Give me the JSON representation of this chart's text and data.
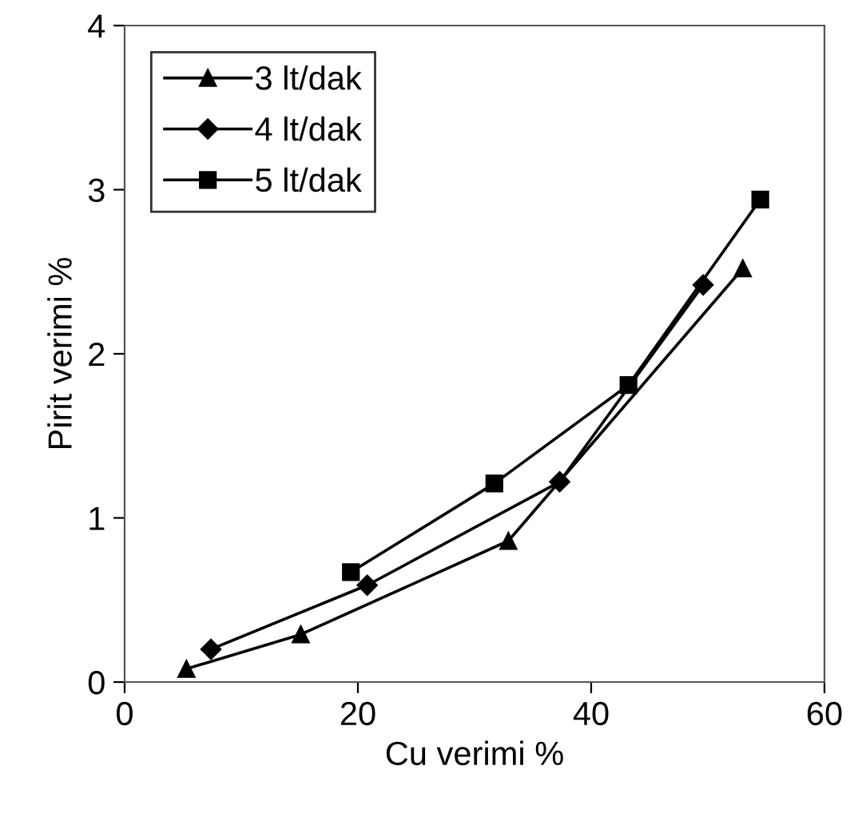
{
  "chart_data": {
    "type": "line",
    "xlabel": "Cu verimi %",
    "ylabel": "Pirit verimi %",
    "xlim": [
      0,
      60
    ],
    "xticks": [
      0,
      20,
      40,
      60
    ],
    "ylim": [
      0,
      4
    ],
    "yticks": [
      0,
      1,
      2,
      3,
      4
    ],
    "grid": false,
    "legend": "top left",
    "line_style": "solid",
    "series": [
      {
        "name": "3 lt/dak",
        "color": "#000000",
        "marker": "triangle",
        "x": [
          5.3,
          15.1,
          32.9,
          53.0
        ],
        "values": [
          0.08,
          0.29,
          0.86,
          2.52
        ]
      },
      {
        "name": "4 lt/dak",
        "color": "#000000",
        "marker": "diamond",
        "x": [
          7.4,
          20.8,
          37.3,
          49.6
        ],
        "values": [
          0.2,
          0.59,
          1.22,
          2.42
        ]
      },
      {
        "name": "5 lt/dak",
        "color": "#000000",
        "marker": "square",
        "x": [
          19.4,
          31.7,
          43.2,
          54.5
        ],
        "values": [
          0.67,
          1.21,
          1.81,
          2.94
        ]
      }
    ]
  }
}
